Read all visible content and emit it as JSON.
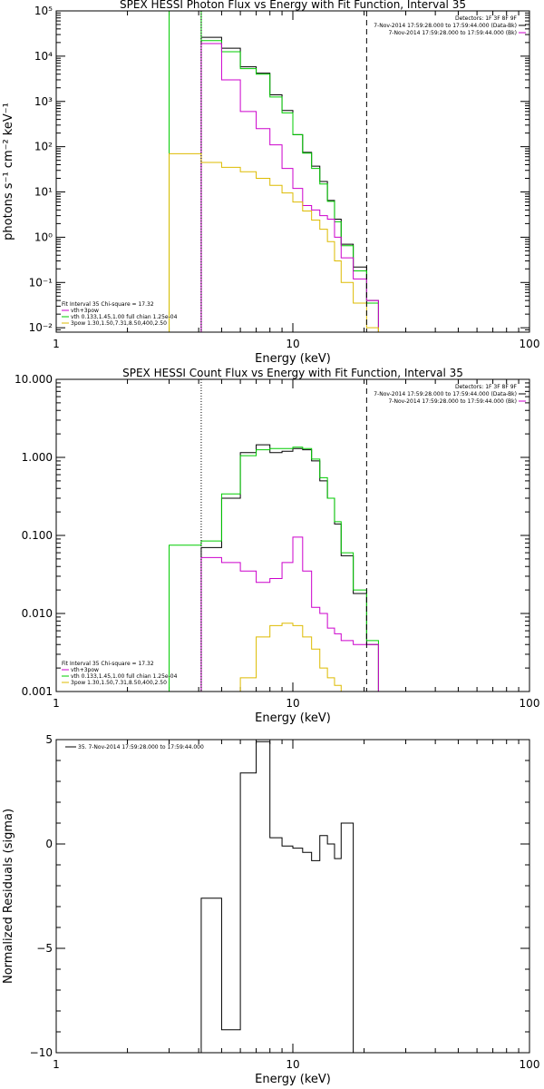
{
  "chart_data": [
    {
      "type": "line",
      "title": "SPEX HESSI Photon Flux vs Energy with Fit Function, Interval 35",
      "xlabel": "Energy (keV)",
      "ylabel": "photons s⁻¹ cm⁻² keV⁻¹",
      "xscale": "log",
      "yscale": "log",
      "xlim": [
        1,
        100
      ],
      "ylim": [
        0.008,
        100000
      ],
      "x_ticks": [
        "1",
        "10",
        "100"
      ],
      "y_ticks": [
        {
          "v": 100000,
          "label": "10⁵"
        },
        {
          "v": 10000,
          "label": "10⁴"
        },
        {
          "v": 1000,
          "label": "10³"
        },
        {
          "v": 100,
          "label": "10²"
        },
        {
          "v": 10,
          "label": "10¹"
        },
        {
          "v": 1,
          "label": "10⁰"
        },
        {
          "v": 0.1,
          "label": "10⁻¹"
        },
        {
          "v": 0.01,
          "label": "10⁻²"
        }
      ],
      "legend_top": [
        {
          "text": "Detectors: 1F 3F 8F 9F",
          "color": ""
        },
        {
          "text": "7-Nov-2014 17:59:28.000 to 17:59:44.000 (Data-Bk)",
          "color": "#000000"
        },
        {
          "text": "7-Nov-2014 17:59:28.000 to 17:59:44.000 (Bk)",
          "color": "#cc00cc"
        }
      ],
      "legend_bottom": [
        {
          "text": "Fit Interval 35   Chi-square = 17.32",
          "color": ""
        },
        {
          "text": "vth+3pow",
          "color": "#cc00cc"
        },
        {
          "text": "vth 0.133,1.45,1.00  full chian 1.25e-04",
          "color": "#00cc00"
        },
        {
          "text": "3pow 1.30,1.50,7.31,8.50,400,2.50",
          "color": "#ddbb00"
        }
      ],
      "vlines": [
        {
          "x": 4.1,
          "style": "dotted"
        },
        {
          "x": 20.5,
          "style": "dashed"
        }
      ],
      "bin_edges": [
        3.0,
        4.1,
        5.0,
        6.0,
        7.0,
        8.0,
        9.0,
        10.0,
        11.0,
        12.0,
        13.0,
        14.0,
        15.0,
        16.0,
        18.0,
        20.5,
        23.0
      ],
      "series": [
        {
          "color": "#000000",
          "values": [
            null,
            26000,
            15000,
            5800,
            4200,
            1400,
            630,
            185,
            75,
            37,
            17,
            6.5,
            2.5,
            0.7,
            0.22,
            0.04
          ]
        },
        {
          "color": "#00cc00",
          "values": [
            100000,
            22000,
            12500,
            5300,
            4000,
            1250,
            560,
            185,
            72,
            33,
            15,
            6.2,
            2.2,
            0.65,
            0.18,
            0.035
          ]
        },
        {
          "color": "#cc00cc",
          "values": [
            null,
            19000,
            3000,
            600,
            250,
            110,
            33,
            12,
            5,
            4,
            3,
            2.5,
            1,
            0.35,
            0.12,
            0.04
          ]
        },
        {
          "color": "#ddbb00",
          "values": [
            70,
            45,
            35,
            28,
            20,
            14,
            9.5,
            6,
            3.8,
            2.4,
            1.5,
            0.8,
            0.3,
            0.1,
            0.035,
            0.01
          ]
        }
      ]
    },
    {
      "type": "line",
      "title": "SPEX HESSI Count Flux vs Energy with Fit Function, Interval 35",
      "xlabel": "Energy (keV)",
      "ylabel": "",
      "xscale": "log",
      "yscale": "log",
      "xlim": [
        1,
        100
      ],
      "ylim": [
        0.001,
        10
      ],
      "x_ticks": [
        "1",
        "10",
        "100"
      ],
      "y_ticks": [
        {
          "v": 10,
          "label": "10.000"
        },
        {
          "v": 1,
          "label": "1.000"
        },
        {
          "v": 0.1,
          "label": "0.100"
        },
        {
          "v": 0.01,
          "label": "0.010"
        },
        {
          "v": 0.001,
          "label": "0.001"
        }
      ],
      "legend_top": [
        {
          "text": "Detectors: 1F 3F 8F 9F",
          "color": ""
        },
        {
          "text": "7-Nov-2014 17:59:28.000 to 17:59:44.000 (Data-Bk)",
          "color": "#000000"
        },
        {
          "text": "7-Nov-2014 17:59:28.000 to 17:59:44.000 (Bk)",
          "color": "#cc00cc"
        }
      ],
      "legend_bottom": [
        {
          "text": "Fit Interval 35   Chi-square = 17.32",
          "color": ""
        },
        {
          "text": "vth+3pow",
          "color": "#cc00cc"
        },
        {
          "text": "vth 0.133,1.45,1.00  full chian 1.25e-04",
          "color": "#00cc00"
        },
        {
          "text": "3pow 1.30,1.50,7.31,8.50,400,2.50",
          "color": "#ddbb00"
        }
      ],
      "vlines": [
        {
          "x": 4.1,
          "style": "dotted"
        },
        {
          "x": 20.5,
          "style": "dashed"
        }
      ],
      "bin_edges": [
        3.0,
        4.1,
        5.0,
        6.0,
        7.0,
        8.0,
        9.0,
        10.0,
        11.0,
        12.0,
        13.0,
        14.0,
        15.0,
        16.0,
        18.0,
        20.5,
        23.0
      ],
      "series": [
        {
          "color": "#000000",
          "values": [
            null,
            0.07,
            0.3,
            1.15,
            1.45,
            1.15,
            1.2,
            1.3,
            1.25,
            0.9,
            0.5,
            0.3,
            0.14,
            0.055,
            0.018,
            0.004
          ]
        },
        {
          "color": "#00cc00",
          "values": [
            0.075,
            0.085,
            0.34,
            1.05,
            1.25,
            1.3,
            1.3,
            1.35,
            1.3,
            0.95,
            0.55,
            0.3,
            0.15,
            0.06,
            0.02,
            0.0045
          ]
        },
        {
          "color": "#cc00cc",
          "values": [
            null,
            0.052,
            0.045,
            0.035,
            0.025,
            0.028,
            0.045,
            0.095,
            0.035,
            0.012,
            0.01,
            0.0065,
            0.0055,
            0.0045,
            0.004,
            0.004
          ]
        },
        {
          "color": "#ddbb00",
          "values": [
            null,
            null,
            null,
            0.0015,
            0.005,
            0.007,
            0.0075,
            0.007,
            0.005,
            0.0035,
            0.002,
            0.0015,
            0.0012,
            null,
            null,
            null
          ]
        }
      ]
    },
    {
      "type": "line",
      "title": "",
      "xlabel": "Energy (keV)",
      "ylabel": "Normalized Residuals (sigma)",
      "xscale": "log",
      "yscale": "linear",
      "xlim": [
        1,
        100
      ],
      "ylim": [
        -10,
        5
      ],
      "x_ticks": [
        "1",
        "10",
        "100"
      ],
      "y_ticks": [
        {
          "v": 5,
          "label": "5"
        },
        {
          "v": 0,
          "label": "0"
        },
        {
          "v": -5,
          "label": "−5"
        },
        {
          "v": -10,
          "label": "−10"
        }
      ],
      "legend_top": [
        {
          "text": "35.  7-Nov-2014 17:59:28.000 to 17:59:44.000",
          "color": "#000000"
        }
      ],
      "bin_edges": [
        4.1,
        5.0,
        6.0,
        7.0,
        8.0,
        9.0,
        10.0,
        11.0,
        12.0,
        13.0,
        14.0,
        15.0,
        16.0,
        18.0,
        20.5
      ],
      "series": [
        {
          "color": "#000000",
          "values": [
            -2.6,
            -8.9,
            3.4,
            4.9,
            0.3,
            -0.1,
            -0.2,
            -0.4,
            -0.8,
            0.4,
            0.0,
            -0.7,
            1.0
          ]
        }
      ]
    }
  ]
}
